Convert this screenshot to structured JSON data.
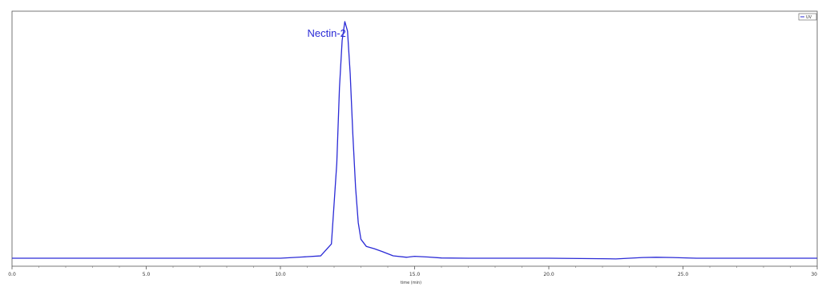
{
  "chart_data": {
    "type": "line",
    "title": "",
    "xlabel": "time (min)",
    "ylabel": "",
    "xlim": [
      0,
      30
    ],
    "ylim": [
      0,
      1
    ],
    "x_ticks": [
      0,
      5,
      10,
      15,
      20,
      25,
      30
    ],
    "x_tick_labels": [
      "0.0",
      "5.0",
      "10.0",
      "15.0",
      "20.0",
      "25.0",
      "30"
    ],
    "grid": false,
    "legend": {
      "placement": "top-right",
      "entries": [
        "UV"
      ]
    },
    "line_color": "#2a2ad6",
    "annotations": [
      {
        "text": "Nectin-2",
        "x": 11.0,
        "y": 0.95
      }
    ],
    "series": [
      {
        "name": "UV",
        "x": [
          0,
          5,
          8,
          10,
          10.8,
          11.5,
          11.9,
          12.1,
          12.2,
          12.3,
          12.4,
          12.5,
          12.6,
          12.7,
          12.8,
          12.9,
          13.0,
          13.2,
          13.5,
          13.8,
          14.2,
          14.7,
          15.0,
          15.5,
          16.0,
          17.0,
          20.0,
          22.0,
          22.5,
          23.0,
          23.5,
          24.0,
          24.6,
          25.5,
          27.0,
          30.0
        ],
        "y": [
          0.0,
          0.0,
          0.0,
          0.0,
          0.005,
          0.01,
          0.06,
          0.4,
          0.72,
          0.92,
          1.0,
          0.96,
          0.78,
          0.52,
          0.3,
          0.15,
          0.08,
          0.05,
          0.04,
          0.028,
          0.01,
          0.004,
          0.008,
          0.005,
          0.001,
          0.0,
          0.0,
          -0.002,
          -0.003,
          0.0,
          0.003,
          0.004,
          0.003,
          0.0,
          0.0,
          0.0
        ]
      }
    ]
  }
}
